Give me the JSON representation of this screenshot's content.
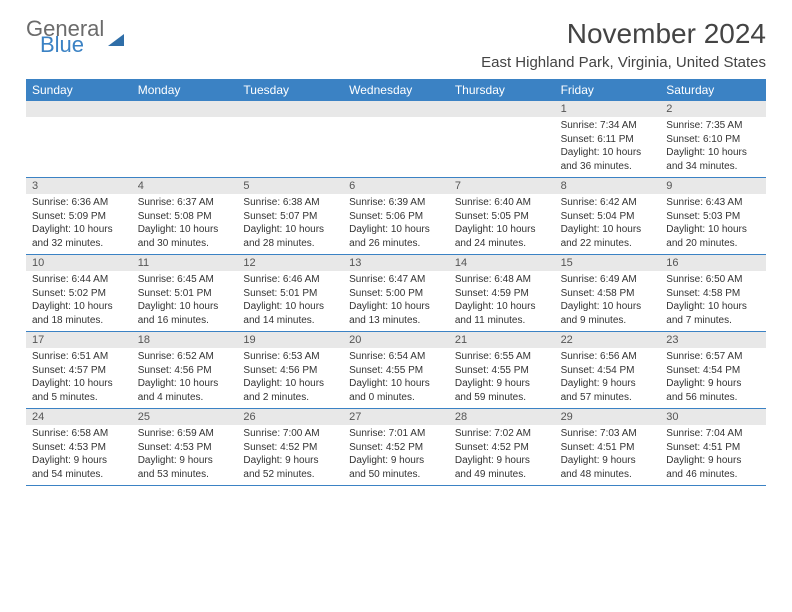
{
  "logo": {
    "text1": "General",
    "text2": "Blue",
    "color_general": "#6b6b6b",
    "color_blue": "#3b82c4"
  },
  "title": "November 2024",
  "location": "East Highland Park, Virginia, United States",
  "colors": {
    "header_bg": "#3b82c4",
    "daynum_bg": "#e8e8e8",
    "border": "#3b82c4"
  },
  "day_names": [
    "Sunday",
    "Monday",
    "Tuesday",
    "Wednesday",
    "Thursday",
    "Friday",
    "Saturday"
  ],
  "weeks": [
    [
      {
        "n": "",
        "lines": []
      },
      {
        "n": "",
        "lines": []
      },
      {
        "n": "",
        "lines": []
      },
      {
        "n": "",
        "lines": []
      },
      {
        "n": "",
        "lines": []
      },
      {
        "n": "1",
        "lines": [
          "Sunrise: 7:34 AM",
          "Sunset: 6:11 PM",
          "Daylight: 10 hours and 36 minutes."
        ]
      },
      {
        "n": "2",
        "lines": [
          "Sunrise: 7:35 AM",
          "Sunset: 6:10 PM",
          "Daylight: 10 hours and 34 minutes."
        ]
      }
    ],
    [
      {
        "n": "3",
        "lines": [
          "Sunrise: 6:36 AM",
          "Sunset: 5:09 PM",
          "Daylight: 10 hours and 32 minutes."
        ]
      },
      {
        "n": "4",
        "lines": [
          "Sunrise: 6:37 AM",
          "Sunset: 5:08 PM",
          "Daylight: 10 hours and 30 minutes."
        ]
      },
      {
        "n": "5",
        "lines": [
          "Sunrise: 6:38 AM",
          "Sunset: 5:07 PM",
          "Daylight: 10 hours and 28 minutes."
        ]
      },
      {
        "n": "6",
        "lines": [
          "Sunrise: 6:39 AM",
          "Sunset: 5:06 PM",
          "Daylight: 10 hours and 26 minutes."
        ]
      },
      {
        "n": "7",
        "lines": [
          "Sunrise: 6:40 AM",
          "Sunset: 5:05 PM",
          "Daylight: 10 hours and 24 minutes."
        ]
      },
      {
        "n": "8",
        "lines": [
          "Sunrise: 6:42 AM",
          "Sunset: 5:04 PM",
          "Daylight: 10 hours and 22 minutes."
        ]
      },
      {
        "n": "9",
        "lines": [
          "Sunrise: 6:43 AM",
          "Sunset: 5:03 PM",
          "Daylight: 10 hours and 20 minutes."
        ]
      }
    ],
    [
      {
        "n": "10",
        "lines": [
          "Sunrise: 6:44 AM",
          "Sunset: 5:02 PM",
          "Daylight: 10 hours and 18 minutes."
        ]
      },
      {
        "n": "11",
        "lines": [
          "Sunrise: 6:45 AM",
          "Sunset: 5:01 PM",
          "Daylight: 10 hours and 16 minutes."
        ]
      },
      {
        "n": "12",
        "lines": [
          "Sunrise: 6:46 AM",
          "Sunset: 5:01 PM",
          "Daylight: 10 hours and 14 minutes."
        ]
      },
      {
        "n": "13",
        "lines": [
          "Sunrise: 6:47 AM",
          "Sunset: 5:00 PM",
          "Daylight: 10 hours and 13 minutes."
        ]
      },
      {
        "n": "14",
        "lines": [
          "Sunrise: 6:48 AM",
          "Sunset: 4:59 PM",
          "Daylight: 10 hours and 11 minutes."
        ]
      },
      {
        "n": "15",
        "lines": [
          "Sunrise: 6:49 AM",
          "Sunset: 4:58 PM",
          "Daylight: 10 hours and 9 minutes."
        ]
      },
      {
        "n": "16",
        "lines": [
          "Sunrise: 6:50 AM",
          "Sunset: 4:58 PM",
          "Daylight: 10 hours and 7 minutes."
        ]
      }
    ],
    [
      {
        "n": "17",
        "lines": [
          "Sunrise: 6:51 AM",
          "Sunset: 4:57 PM",
          "Daylight: 10 hours and 5 minutes."
        ]
      },
      {
        "n": "18",
        "lines": [
          "Sunrise: 6:52 AM",
          "Sunset: 4:56 PM",
          "Daylight: 10 hours and 4 minutes."
        ]
      },
      {
        "n": "19",
        "lines": [
          "Sunrise: 6:53 AM",
          "Sunset: 4:56 PM",
          "Daylight: 10 hours and 2 minutes."
        ]
      },
      {
        "n": "20",
        "lines": [
          "Sunrise: 6:54 AM",
          "Sunset: 4:55 PM",
          "Daylight: 10 hours and 0 minutes."
        ]
      },
      {
        "n": "21",
        "lines": [
          "Sunrise: 6:55 AM",
          "Sunset: 4:55 PM",
          "Daylight: 9 hours and 59 minutes."
        ]
      },
      {
        "n": "22",
        "lines": [
          "Sunrise: 6:56 AM",
          "Sunset: 4:54 PM",
          "Daylight: 9 hours and 57 minutes."
        ]
      },
      {
        "n": "23",
        "lines": [
          "Sunrise: 6:57 AM",
          "Sunset: 4:54 PM",
          "Daylight: 9 hours and 56 minutes."
        ]
      }
    ],
    [
      {
        "n": "24",
        "lines": [
          "Sunrise: 6:58 AM",
          "Sunset: 4:53 PM",
          "Daylight: 9 hours and 54 minutes."
        ]
      },
      {
        "n": "25",
        "lines": [
          "Sunrise: 6:59 AM",
          "Sunset: 4:53 PM",
          "Daylight: 9 hours and 53 minutes."
        ]
      },
      {
        "n": "26",
        "lines": [
          "Sunrise: 7:00 AM",
          "Sunset: 4:52 PM",
          "Daylight: 9 hours and 52 minutes."
        ]
      },
      {
        "n": "27",
        "lines": [
          "Sunrise: 7:01 AM",
          "Sunset: 4:52 PM",
          "Daylight: 9 hours and 50 minutes."
        ]
      },
      {
        "n": "28",
        "lines": [
          "Sunrise: 7:02 AM",
          "Sunset: 4:52 PM",
          "Daylight: 9 hours and 49 minutes."
        ]
      },
      {
        "n": "29",
        "lines": [
          "Sunrise: 7:03 AM",
          "Sunset: 4:51 PM",
          "Daylight: 9 hours and 48 minutes."
        ]
      },
      {
        "n": "30",
        "lines": [
          "Sunrise: 7:04 AM",
          "Sunset: 4:51 PM",
          "Daylight: 9 hours and 46 minutes."
        ]
      }
    ]
  ]
}
